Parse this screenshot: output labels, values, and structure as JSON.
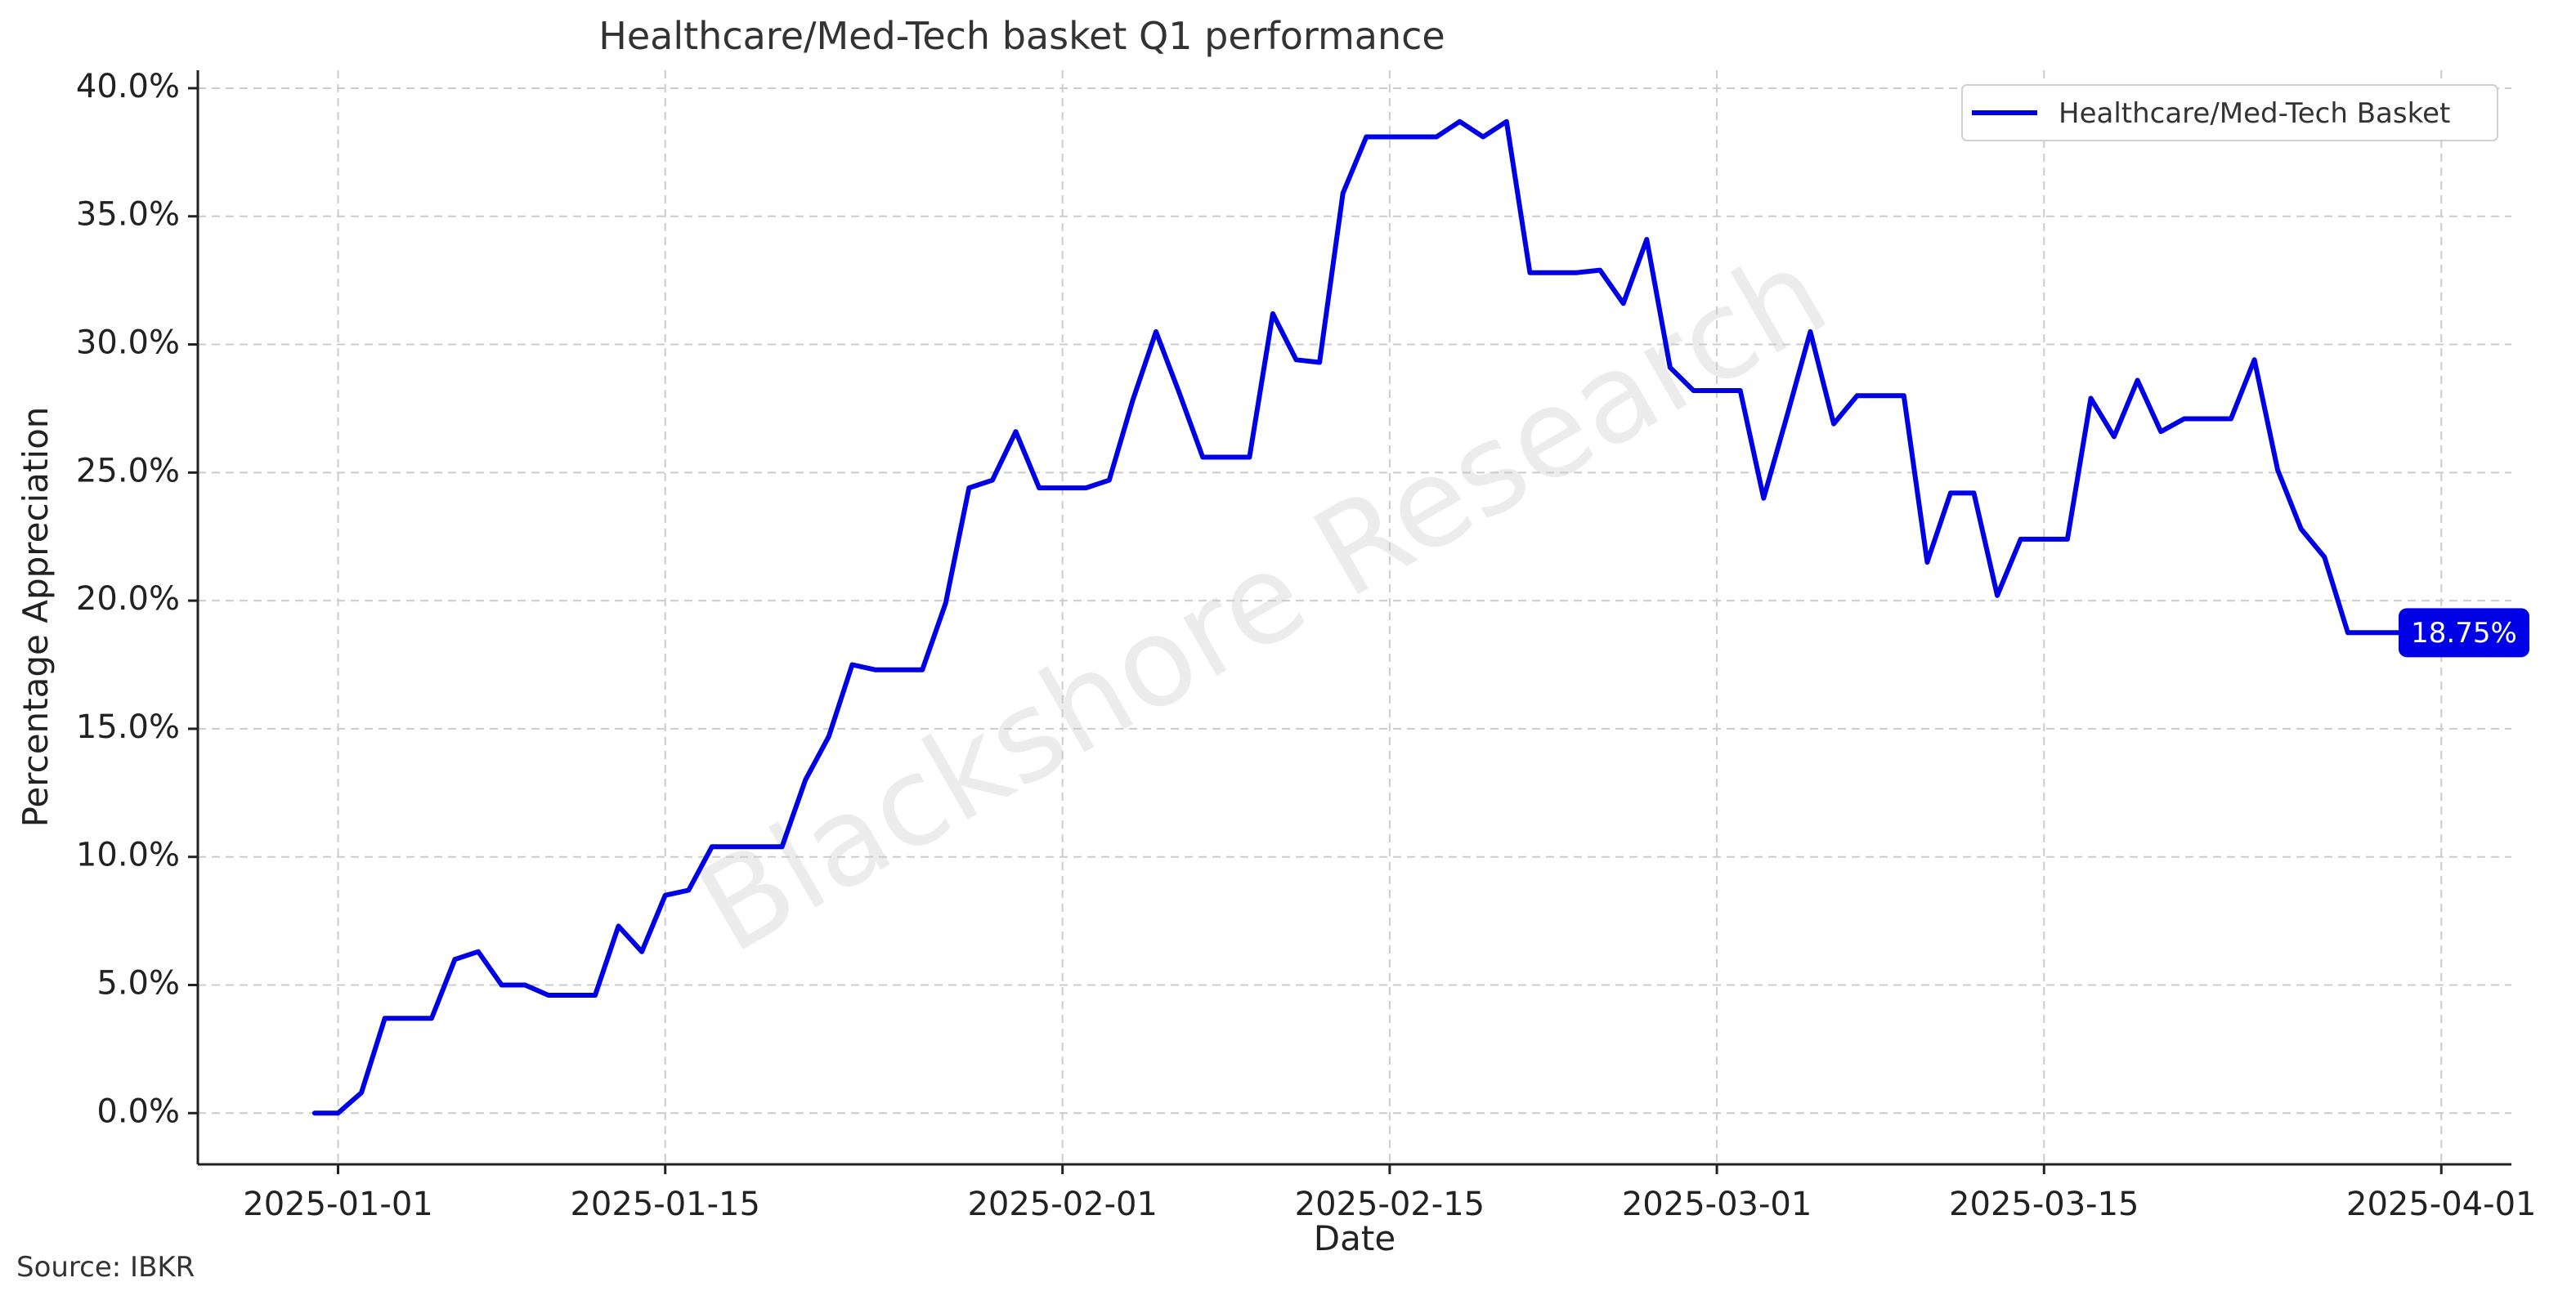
{
  "chart_data": {
    "type": "line",
    "title": "Healthcare/Med-Tech basket Q1 performance",
    "xlabel": "Date",
    "ylabel": "Percentage Appreciation",
    "source": "Source: IBKR",
    "watermark": "Blackshore Research",
    "legend": {
      "placement": "top-right",
      "entries": [
        "Healthcare/Med-Tech Basket"
      ]
    },
    "grid": true,
    "line_color": "#0000e6",
    "end_label": "18.75%",
    "xlim": [
      "2024-12-26",
      "2025-04-04"
    ],
    "ylim": [
      -2.0,
      40.7
    ],
    "x_ticks": [
      "2025-01-01",
      "2025-01-15",
      "2025-02-01",
      "2025-02-15",
      "2025-03-01",
      "2025-03-15",
      "2025-04-01"
    ],
    "y_ticks": [
      {
        "value": 0,
        "label": "0.0%"
      },
      {
        "value": 5,
        "label": "5.0%"
      },
      {
        "value": 10,
        "label": "10.0%"
      },
      {
        "value": 15,
        "label": "15.0%"
      },
      {
        "value": 20,
        "label": "20.0%"
      },
      {
        "value": 25,
        "label": "25.0%"
      },
      {
        "value": 30,
        "label": "30.0%"
      },
      {
        "value": 35,
        "label": "35.0%"
      },
      {
        "value": 40,
        "label": "40.0%"
      }
    ],
    "series": [
      {
        "name": "Healthcare/Med-Tech Basket",
        "x": [
          "2024-12-31",
          "2025-01-01",
          "2025-01-02",
          "2025-01-03",
          "2025-01-04",
          "2025-01-05",
          "2025-01-06",
          "2025-01-07",
          "2025-01-08",
          "2025-01-09",
          "2025-01-10",
          "2025-01-11",
          "2025-01-12",
          "2025-01-13",
          "2025-01-14",
          "2025-01-15",
          "2025-01-16",
          "2025-01-17",
          "2025-01-18",
          "2025-01-19",
          "2025-01-20",
          "2025-01-21",
          "2025-01-22",
          "2025-01-23",
          "2025-01-24",
          "2025-01-25",
          "2025-01-26",
          "2025-01-27",
          "2025-01-28",
          "2025-01-29",
          "2025-01-30",
          "2025-01-31",
          "2025-02-01",
          "2025-02-02",
          "2025-02-03",
          "2025-02-04",
          "2025-02-05",
          "2025-02-06",
          "2025-02-07",
          "2025-02-08",
          "2025-02-09",
          "2025-02-10",
          "2025-02-11",
          "2025-02-12",
          "2025-02-13",
          "2025-02-14",
          "2025-02-15",
          "2025-02-16",
          "2025-02-17",
          "2025-02-18",
          "2025-02-19",
          "2025-02-20",
          "2025-02-21",
          "2025-02-22",
          "2025-02-23",
          "2025-02-24",
          "2025-02-25",
          "2025-02-26",
          "2025-02-27",
          "2025-02-28",
          "2025-03-01",
          "2025-03-02",
          "2025-03-03",
          "2025-03-04",
          "2025-03-05",
          "2025-03-06",
          "2025-03-07",
          "2025-03-08",
          "2025-03-09",
          "2025-03-10",
          "2025-03-11",
          "2025-03-12",
          "2025-03-13",
          "2025-03-14",
          "2025-03-15",
          "2025-03-16",
          "2025-03-17",
          "2025-03-18",
          "2025-03-19",
          "2025-03-20",
          "2025-03-21",
          "2025-03-22",
          "2025-03-23",
          "2025-03-24",
          "2025-03-25",
          "2025-03-26",
          "2025-03-27",
          "2025-03-28",
          "2025-03-29",
          "2025-03-30",
          "2025-03-31"
        ],
        "values": [
          0.0,
          0.0,
          0.8,
          3.7,
          3.7,
          3.7,
          6.0,
          6.3,
          5.0,
          5.0,
          4.6,
          4.6,
          4.6,
          7.3,
          6.3,
          8.5,
          8.7,
          10.4,
          10.4,
          10.4,
          10.4,
          13.0,
          14.7,
          17.5,
          17.3,
          17.3,
          17.3,
          19.9,
          24.4,
          24.7,
          26.6,
          24.4,
          24.4,
          24.4,
          24.7,
          27.8,
          30.5,
          28.1,
          25.6,
          25.6,
          25.6,
          31.2,
          29.4,
          29.3,
          35.9,
          38.1,
          38.1,
          38.1,
          38.1,
          38.7,
          38.1,
          38.7,
          32.8,
          32.8,
          32.8,
          32.9,
          31.6,
          34.1,
          29.1,
          28.2,
          28.2,
          28.2,
          24.0,
          27.2,
          30.5,
          26.9,
          28.0,
          28.0,
          28.0,
          21.5,
          24.2,
          24.2,
          20.2,
          22.4,
          22.4,
          22.4,
          27.9,
          26.4,
          28.6,
          26.6,
          27.1,
          27.1,
          27.1,
          29.4,
          25.1,
          22.8,
          21.7,
          18.75,
          18.75,
          18.75,
          18.75
        ]
      }
    ]
  }
}
